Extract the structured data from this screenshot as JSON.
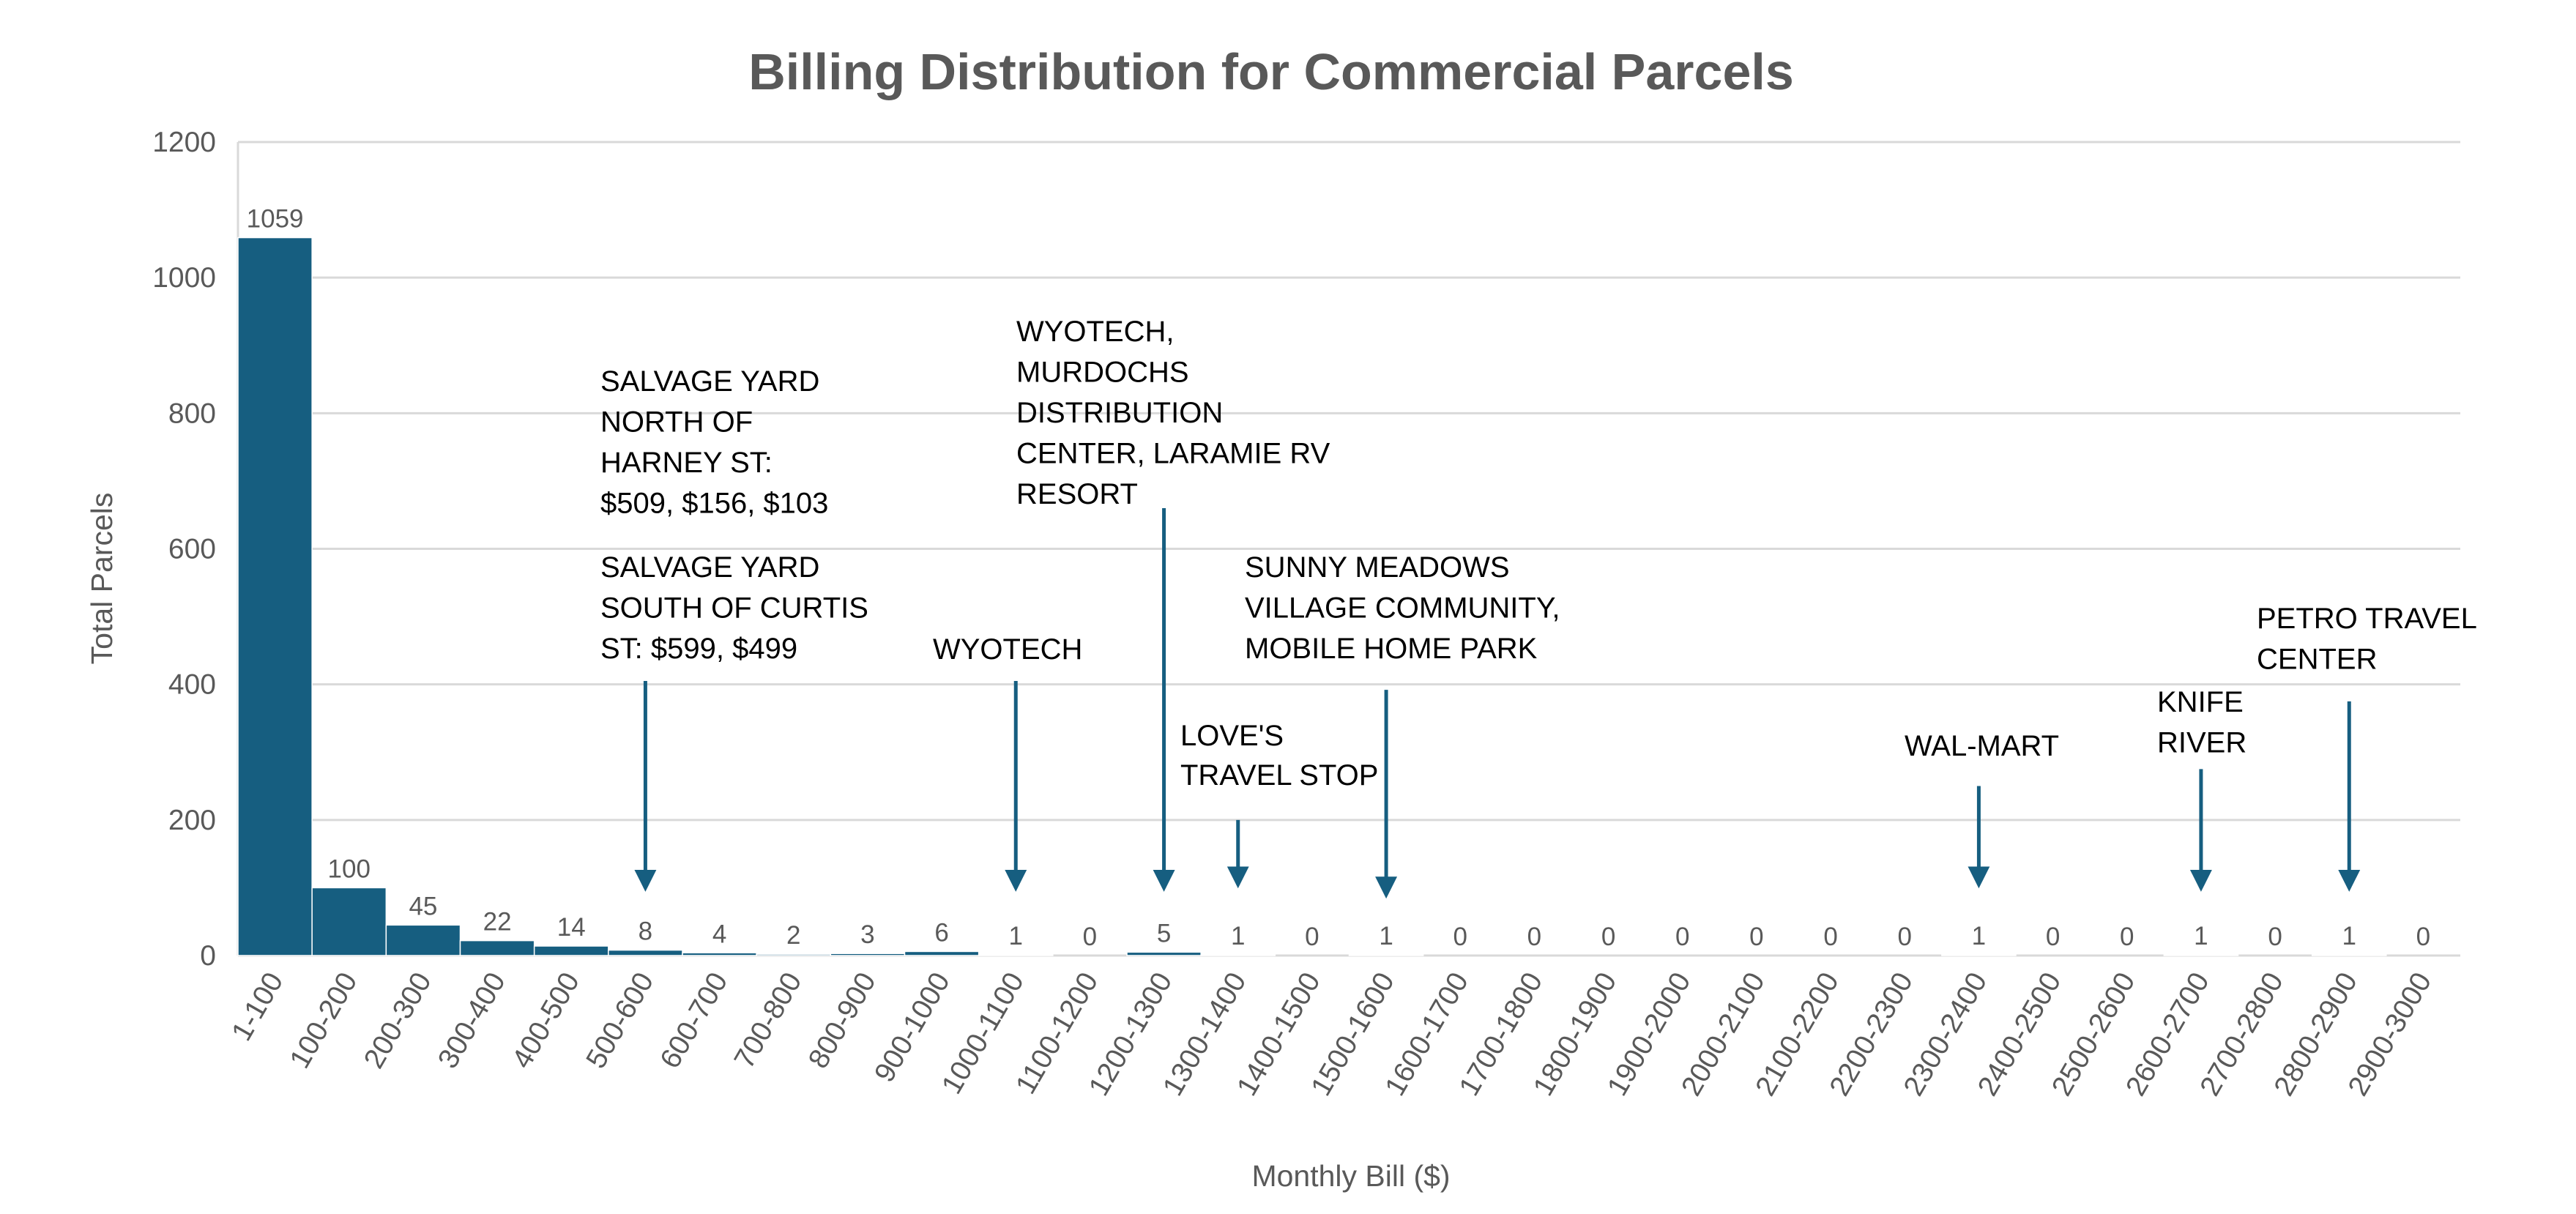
{
  "chart_data": {
    "type": "bar",
    "title": "Billing Distribution for Commercial Parcels",
    "xlabel": "Monthly Bill ($)",
    "ylabel": "Total Parcels",
    "ylim": [
      0,
      1200
    ],
    "yticks": [
      0,
      200,
      400,
      600,
      800,
      1000,
      1200
    ],
    "grid": true,
    "bar_color": "#165e80",
    "arrow_color": "#165e80",
    "categories": [
      "1-100",
      "100-200",
      "200-300",
      "300-400",
      "400-500",
      "500-600",
      "600-700",
      "700-800",
      "800-900",
      "900-1000",
      "1000-1100",
      "1100-1200",
      "1200-1300",
      "1300-1400",
      "1400-1500",
      "1500-1600",
      "1600-1700",
      "1700-1800",
      "1800-1900",
      "1900-2000",
      "2000-2100",
      "2100-2200",
      "2200-2300",
      "2300-2400",
      "2400-2500",
      "2500-2600",
      "2600-2700",
      "2700-2800",
      "2800-2900",
      "2900-3000"
    ],
    "values": [
      1059,
      100,
      45,
      22,
      14,
      8,
      4,
      2,
      3,
      6,
      1,
      0,
      5,
      1,
      0,
      1,
      0,
      0,
      0,
      0,
      0,
      0,
      0,
      1,
      0,
      0,
      1,
      0,
      1,
      0
    ],
    "annotations": [
      {
        "category_index": 5,
        "arrow_from": 405,
        "arrow_to": 80,
        "lines": [
          "SALVAGE YARD",
          "NORTH OF",
          "HARNEY ST:",
          "$509, $156, $103"
        ]
      },
      {
        "category_index": 5,
        "arrow_from": null,
        "arrow_to": null,
        "lines": [
          "SALVAGE YARD",
          "SOUTH OF CURTIS",
          "ST: $599, $499"
        ]
      },
      {
        "category_index": 10,
        "arrow_from": 405,
        "arrow_to": 80,
        "lines": [
          "WYOTECH"
        ]
      },
      {
        "category_index": 12,
        "arrow_from": 660,
        "arrow_to": 80,
        "lines": [
          "WYOTECH,",
          "MURDOCHS",
          "DISTRIBUTION",
          "CENTER, LARAMIE RV",
          "RESORT"
        ]
      },
      {
        "category_index": 13,
        "arrow_from": 200,
        "arrow_to": 85,
        "lines": [
          "LOVE'S",
          "TRAVEL STOP"
        ]
      },
      {
        "category_index": 15,
        "arrow_from": 392,
        "arrow_to": 70,
        "lines": [
          "SUNNY MEADOWS",
          "VILLAGE COMMUNITY,",
          "MOBILE HOME PARK"
        ]
      },
      {
        "category_index": 23,
        "arrow_from": 250,
        "arrow_to": 85,
        "lines": [
          "WAL-MART"
        ]
      },
      {
        "category_index": 26,
        "arrow_from": 275,
        "arrow_to": 80,
        "lines": [
          "KNIFE",
          "RIVER"
        ]
      },
      {
        "category_index": 28,
        "arrow_from": 375,
        "arrow_to": 80,
        "lines": [
          "PETRO TRAVEL",
          "CENTER"
        ]
      }
    ]
  }
}
